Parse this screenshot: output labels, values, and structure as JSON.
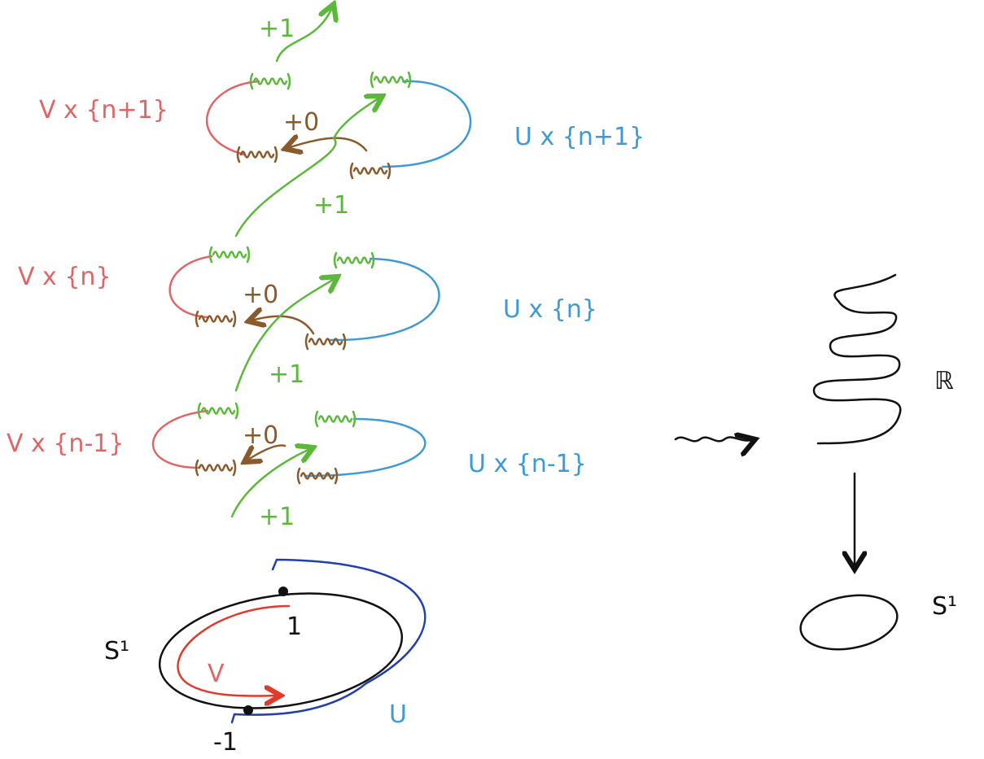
{
  "levels": [
    {
      "v_label": "V x {n+1}",
      "u_label": "U x {n+1}",
      "plus_zero": "+0",
      "plus_one": "+1"
    },
    {
      "v_label": "V x {n}",
      "u_label": "U x {n}",
      "plus_zero": "+0",
      "plus_one": "+1"
    },
    {
      "v_label": "V x {n-1}",
      "u_label": "U x {n-1}",
      "plus_zero": "+0",
      "plus_one": "+1"
    }
  ],
  "top_plus_one": "+1",
  "circle": {
    "label": "S¹",
    "point_top": "1",
    "point_bottom": "-1",
    "v_label": "V",
    "u_label": "U"
  },
  "covering": {
    "total_space": "ℝ",
    "base_space": "S¹"
  }
}
